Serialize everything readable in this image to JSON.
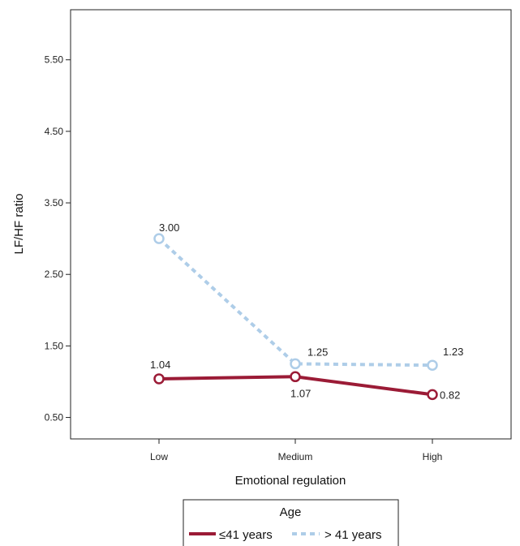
{
  "chart_data": {
    "type": "line",
    "title": "",
    "xlabel": "Emotional regulation",
    "ylabel": "LF/HF ratio",
    "categories": [
      "Low",
      "Medium",
      "High"
    ],
    "ylim": [
      0.2,
      6.2
    ],
    "yticks": [
      "0.50",
      "1.50",
      "2.50",
      "3.50",
      "4.50",
      "5.50"
    ],
    "grid": false,
    "legend": {
      "title": "Age",
      "position": "bottom"
    },
    "series": [
      {
        "name": "≤41 years",
        "values": [
          1.04,
          1.07,
          0.82
        ],
        "labels": [
          "1.04",
          "1.07",
          "0.82"
        ],
        "color": "#9b1b36",
        "style": "solid"
      },
      {
        "name": "> 41 years",
        "values": [
          3.0,
          1.25,
          1.23
        ],
        "labels": [
          "3.00",
          "1.25",
          "1.23"
        ],
        "color": "#aecde8",
        "style": "dashed"
      }
    ]
  }
}
